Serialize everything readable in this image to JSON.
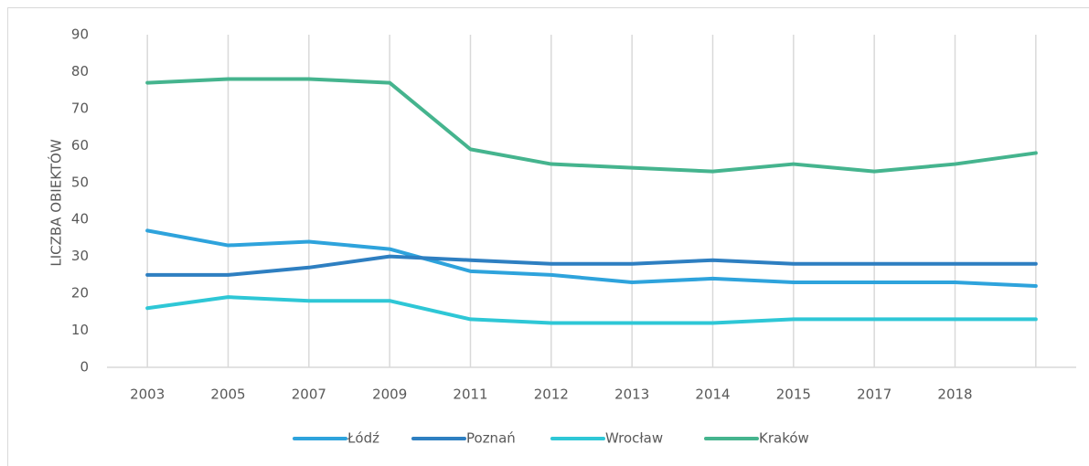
{
  "chart_data": {
    "type": "line",
    "y_label": "LICZBA OBIEKTÓW",
    "categories": [
      "2003",
      "2005",
      "2007",
      "2009",
      "2011",
      "2012",
      "2013",
      "2014",
      "2015",
      "2017",
      "2018",
      null
    ],
    "series": [
      {
        "name": "Łódź",
        "color": "#2ea3dc",
        "values": [
          37,
          33,
          34,
          32,
          26,
          25,
          23,
          24,
          23,
          23,
          23,
          22
        ]
      },
      {
        "name": "Poznań",
        "color": "#2e7fc1",
        "values": [
          25,
          25,
          27,
          30,
          29,
          28,
          28,
          29,
          28,
          28,
          28,
          28
        ]
      },
      {
        "name": "Wrocław",
        "color": "#2ec7d6",
        "values": [
          16,
          19,
          18,
          18,
          13,
          12,
          12,
          12,
          13,
          13,
          13,
          13
        ]
      },
      {
        "name": "Kraków",
        "color": "#45b48e",
        "values": [
          77,
          78,
          78,
          77,
          59,
          55,
          54,
          53,
          55,
          53,
          55,
          58
        ]
      }
    ],
    "ylim": [
      0,
      90
    ],
    "yticks": [
      0,
      10,
      20,
      30,
      40,
      50,
      60,
      70,
      80,
      90
    ],
    "xgrid": true,
    "legend": "bottom"
  }
}
